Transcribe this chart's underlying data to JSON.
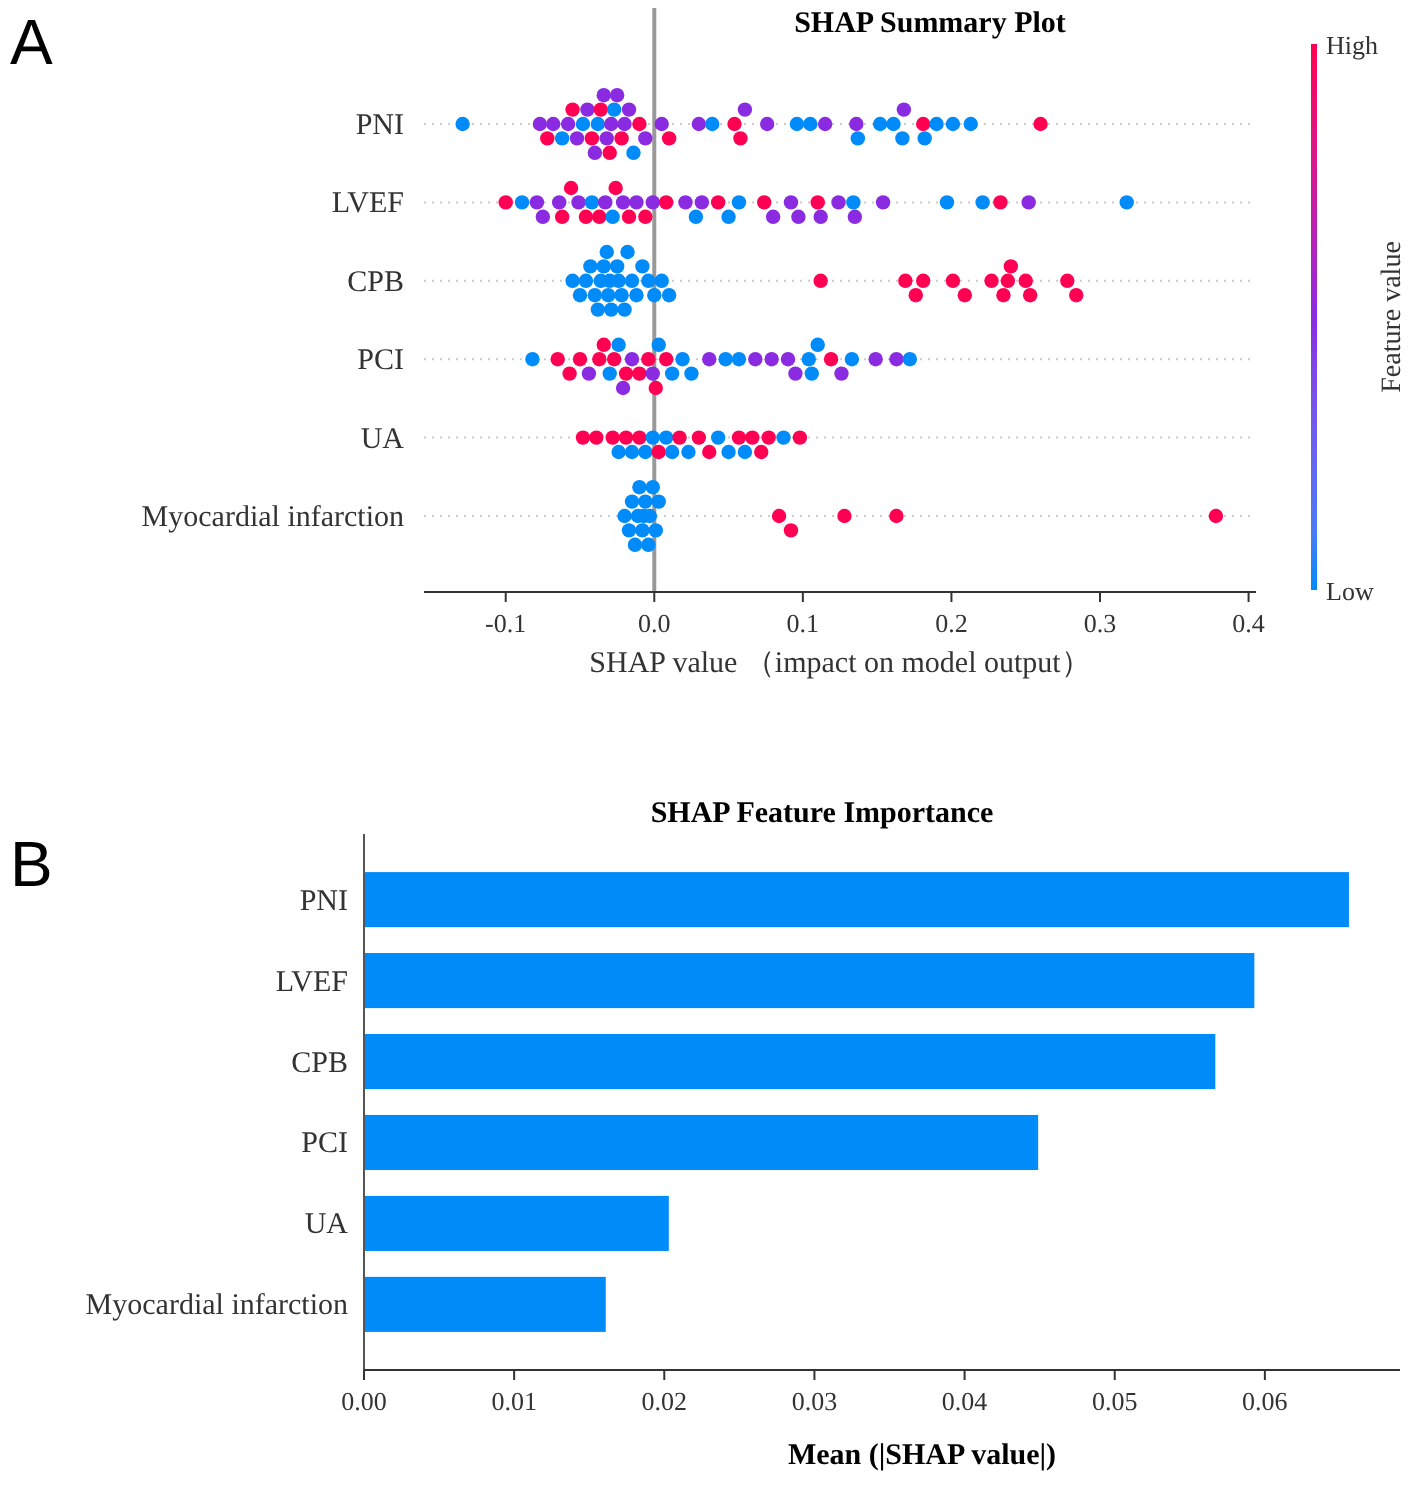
{
  "chart_data": [
    {
      "type": "scatter",
      "title": "SHAP Summary Plot",
      "xlabel": "SHAP value （impact on model output）",
      "clabel": "Feature value",
      "annotations": [
        "A",
        "High",
        "Low"
      ],
      "orientation": "horizontal",
      "grid": "y",
      "categories": [
        "PNI",
        "LVEF",
        "CPB",
        "PCI",
        "UA",
        "Myocardial infarction"
      ],
      "xlim": [
        -0.155,
        0.405
      ],
      "xticks": [
        -0.1,
        {
          "value": 0,
          "label": "0.0"
        },
        0.1,
        0.2,
        0.3,
        0.4
      ],
      "ref_lines": [
        {
          "axis": "x",
          "value": 0,
          "color": "#999999"
        }
      ],
      "series": [
        {
          "x": [
            "PNI",
            "PNI",
            "PNI",
            "PNI",
            "PNI",
            "PNI",
            "PNI",
            "PNI",
            "PNI",
            "PNI",
            "PNI",
            "PNI",
            "PNI",
            "PNI",
            "PNI",
            "PNI",
            "PNI",
            "PNI",
            "PNI",
            "PNI",
            "PNI",
            "PNI",
            "PNI",
            "PNI",
            "PNI",
            "PNI",
            "PNI",
            "PNI",
            "PNI",
            "PNI",
            "PNI",
            "PNI",
            "PNI",
            "PNI",
            "PNI",
            "PNI",
            "PNI",
            "PNI",
            "PNI",
            "PNI",
            "PNI",
            "PNI",
            "PNI",
            "PNI",
            "PNI",
            "PNI",
            "PNI",
            "PNI",
            "PNI"
          ],
          "values": [
            -0.129,
            -0.077,
            -0.072,
            -0.068,
            -0.062,
            -0.058,
            -0.055,
            -0.052,
            -0.048,
            -0.045,
            -0.042,
            -0.04,
            -0.038,
            -0.036,
            -0.034,
            -0.032,
            -0.03,
            -0.029,
            -0.027,
            -0.025,
            -0.022,
            -0.02,
            -0.017,
            -0.014,
            -0.01,
            -0.006,
            0.005,
            0.01,
            0.03,
            0.039,
            0.054,
            0.058,
            0.061,
            0.076,
            0.096,
            0.105,
            0.115,
            0.136,
            0.137,
            0.152,
            0.161,
            0.167,
            0.168,
            0.181,
            0.182,
            0.19,
            0.201,
            0.213,
            0.26
          ],
          "colors": [
            "#008bfb",
            "#8a2be2",
            "#ff0052",
            "#8a2be2",
            "#008bfb",
            "#8a2be2",
            "#ff0052",
            "#8a2be2",
            "#008bfb",
            "#8a2be2",
            "#ff0052",
            "#8a2be2",
            "#008bfb",
            "#ff0052",
            "#8a2be2",
            "#8a2be2",
            "#ff0052",
            "#8a2be2",
            "#008bfb",
            "#8a2be2",
            "#ff0052",
            "#8a2be2",
            "#8a2be2",
            "#008bfb",
            "#ff0052",
            "#8a2be2",
            "#8a2be2",
            "#ff0052",
            "#8a2be2",
            "#008bfb",
            "#ff0052",
            "#ff0052",
            "#8a2be2",
            "#8a2be2",
            "#008bfb",
            "#008bfb",
            "#8a2be2",
            "#8a2be2",
            "#008bfb",
            "#008bfb",
            "#008bfb",
            "#008bfb",
            "#8a2be2",
            "#ff0052",
            "#008bfb",
            "#008bfb",
            "#008bfb",
            "#008bfb",
            "#ff0052"
          ]
        },
        {
          "x": [
            "LVEF",
            "LVEF",
            "LVEF",
            "LVEF",
            "LVEF",
            "LVEF",
            "LVEF",
            "LVEF",
            "LVEF",
            "LVEF",
            "LVEF",
            "LVEF",
            "LVEF",
            "LVEF",
            "LVEF",
            "LVEF",
            "LVEF",
            "LVEF",
            "LVEF",
            "LVEF",
            "LVEF",
            "LVEF",
            "LVEF",
            "LVEF",
            "LVEF",
            "LVEF",
            "LVEF",
            "LVEF",
            "LVEF",
            "LVEF",
            "LVEF",
            "LVEF",
            "LVEF",
            "LVEF",
            "LVEF",
            "LVEF",
            "LVEF",
            "LVEF",
            "LVEF",
            "LVEF",
            "LVEF"
          ],
          "values": [
            -0.1,
            -0.089,
            -0.079,
            -0.075,
            -0.064,
            -0.062,
            -0.056,
            -0.051,
            -0.046,
            -0.042,
            -0.037,
            -0.033,
            -0.028,
            -0.026,
            -0.021,
            -0.017,
            -0.012,
            -0.006,
            -0.001,
            0.008,
            0.021,
            0.028,
            0.032,
            0.043,
            0.05,
            0.057,
            0.074,
            0.08,
            0.092,
            0.097,
            0.11,
            0.112,
            0.124,
            0.134,
            0.135,
            0.154,
            0.197,
            0.221,
            0.233,
            0.252,
            0.318
          ],
          "colors": [
            "#ff0052",
            "#008bfb",
            "#8a2be2",
            "#8a2be2",
            "#8a2be2",
            "#ff0052",
            "#ff0052",
            "#8a2be2",
            "#ff0052",
            "#008bfb",
            "#ff0052",
            "#8a2be2",
            "#008bfb",
            "#ff0052",
            "#8a2be2",
            "#ff0052",
            "#8a2be2",
            "#ff0052",
            "#8a2be2",
            "#ff0052",
            "#8a2be2",
            "#008bfb",
            "#8a2be2",
            "#ff0052",
            "#008bfb",
            "#008bfb",
            "#ff0052",
            "#8a2be2",
            "#8a2be2",
            "#8a2be2",
            "#ff0052",
            "#8a2be2",
            "#8a2be2",
            "#008bfb",
            "#8a2be2",
            "#8a2be2",
            "#008bfb",
            "#008bfb",
            "#ff0052",
            "#8a2be2",
            "#008bfb"
          ]
        },
        {
          "x": [
            "CPB",
            "CPB",
            "CPB",
            "CPB",
            "CPB",
            "CPB",
            "CPB",
            "CPB",
            "CPB",
            "CPB",
            "CPB",
            "CPB",
            "CPB",
            "CPB",
            "CPB",
            "CPB",
            "CPB",
            "CPB",
            "CPB",
            "CPB",
            "CPB",
            "CPB",
            "CPB",
            "CPB",
            "CPB",
            "CPB",
            "CPB",
            "CPB",
            "CPB",
            "CPB",
            "CPB",
            "CPB",
            "CPB",
            "CPB",
            "CPB",
            "CPB",
            "CPB",
            "CPB"
          ],
          "values": [
            -0.055,
            -0.05,
            -0.046,
            -0.043,
            -0.04,
            -0.038,
            -0.036,
            -0.034,
            -0.032,
            -0.031,
            -0.03,
            -0.029,
            -0.025,
            -0.024,
            -0.022,
            -0.02,
            -0.018,
            -0.015,
            -0.012,
            -0.008,
            -0.004,
            0,
            0.005,
            0.01,
            0.112,
            0.169,
            0.176,
            0.181,
            0.201,
            0.209,
            0.227,
            0.235,
            0.238,
            0.24,
            0.25,
            0.253,
            0.278,
            0.284
          ],
          "colors": [
            "#008bfb",
            "#008bfb",
            "#008bfb",
            "#008bfb",
            "#008bfb",
            "#008bfb",
            "#008bfb",
            "#008bfb",
            "#008bfb",
            "#008bfb",
            "#008bfb",
            "#008bfb",
            "#008bfb",
            "#008bfb",
            "#008bfb",
            "#008bfb",
            "#008bfb",
            "#008bfb",
            "#008bfb",
            "#008bfb",
            "#008bfb",
            "#008bfb",
            "#008bfb",
            "#008bfb",
            "#ff0052",
            "#ff0052",
            "#ff0052",
            "#ff0052",
            "#ff0052",
            "#ff0052",
            "#ff0052",
            "#ff0052",
            "#ff0052",
            "#ff0052",
            "#ff0052",
            "#ff0052",
            "#ff0052",
            "#ff0052"
          ]
        },
        {
          "x": [
            "PCI",
            "PCI",
            "PCI",
            "PCI",
            "PCI",
            "PCI",
            "PCI",
            "PCI",
            "PCI",
            "PCI",
            "PCI",
            "PCI",
            "PCI",
            "PCI",
            "PCI",
            "PCI",
            "PCI",
            "PCI",
            "PCI",
            "PCI",
            "PCI",
            "PCI",
            "PCI",
            "PCI",
            "PCI",
            "PCI",
            "PCI",
            "PCI",
            "PCI",
            "PCI",
            "PCI",
            "PCI",
            "PCI",
            "PCI",
            "PCI",
            "PCI",
            "PCI",
            "PCI"
          ],
          "values": [
            -0.082,
            -0.065,
            -0.057,
            -0.05,
            -0.044,
            -0.037,
            -0.03,
            -0.027,
            -0.024,
            -0.019,
            -0.015,
            -0.01,
            -0.004,
            -0.001,
            0.003,
            0.008,
            0.012,
            0.019,
            0.025,
            0.037,
            0.048,
            0.057,
            0.068,
            0.079,
            0.09,
            0.095,
            0.104,
            0.106,
            0.11,
            0.119,
            0.126,
            0.133,
            0.149,
            0.163,
            0.172,
            -0.034,
            -0.021,
            0.001
          ],
          "colors": [
            "#008bfb",
            "#ff0052",
            "#ff0052",
            "#ff0052",
            "#8a2be2",
            "#ff0052",
            "#008bfb",
            "#ff0052",
            "#008bfb",
            "#ff0052",
            "#8a2be2",
            "#ff0052",
            "#ff0052",
            "#8a2be2",
            "#008bfb",
            "#ff0052",
            "#008bfb",
            "#008bfb",
            "#008bfb",
            "#8a2be2",
            "#008bfb",
            "#008bfb",
            "#8a2be2",
            "#8a2be2",
            "#8a2be2",
            "#8a2be2",
            "#008bfb",
            "#008bfb",
            "#008bfb",
            "#ff0052",
            "#8a2be2",
            "#008bfb",
            "#8a2be2",
            "#8a2be2",
            "#008bfb",
            "#ff0052",
            "#8a2be2",
            "#ff0052"
          ]
        },
        {
          "x": [
            "UA",
            "UA",
            "UA",
            "UA",
            "UA",
            "UA",
            "UA",
            "UA",
            "UA",
            "UA",
            "UA",
            "UA",
            "UA",
            "UA",
            "UA",
            "UA",
            "UA",
            "UA",
            "UA",
            "UA",
            "UA",
            "UA",
            "UA",
            "UA",
            "UA"
          ],
          "values": [
            -0.048,
            -0.039,
            -0.028,
            -0.024,
            -0.019,
            -0.015,
            -0.01,
            -0.006,
            -0.001,
            0.003,
            0.008,
            0.012,
            0.017,
            0.023,
            0.03,
            0.037,
            0.043,
            0.05,
            0.057,
            0.061,
            0.066,
            0.072,
            0.077,
            0.087,
            0.098
          ],
          "colors": [
            "#ff0052",
            "#ff0052",
            "#ff0052",
            "#008bfb",
            "#ff0052",
            "#008bfb",
            "#ff0052",
            "#008bfb",
            "#008bfb",
            "#ff0052",
            "#008bfb",
            "#008bfb",
            "#ff0052",
            "#008bfb",
            "#ff0052",
            "#ff0052",
            "#008bfb",
            "#008bfb",
            "#ff0052",
            "#008bfb",
            "#ff0052",
            "#ff0052",
            "#ff0052",
            "#008bfb",
            "#ff0052"
          ]
        },
        {
          "x": [
            "Myocardial infarction",
            "Myocardial infarction",
            "Myocardial infarction",
            "Myocardial infarction",
            "Myocardial infarction",
            "Myocardial infarction",
            "Myocardial infarction",
            "Myocardial infarction",
            "Myocardial infarction",
            "Myocardial infarction",
            "Myocardial infarction",
            "Myocardial infarction",
            "Myocardial infarction",
            "Myocardial infarction",
            "Myocardial infarction",
            "Myocardial infarction",
            "Myocardial infarction",
            "Myocardial infarction",
            "Myocardial infarction"
          ],
          "values": [
            -0.02,
            -0.017,
            -0.015,
            -0.013,
            -0.011,
            -0.01,
            -0.008,
            -0.007,
            -0.006,
            -0.004,
            -0.003,
            -0.001,
            0.001,
            0.003,
            0.084,
            0.092,
            0.128,
            0.163,
            0.378
          ],
          "colors": [
            "#008bfb",
            "#008bfb",
            "#008bfb",
            "#008bfb",
            "#008bfb",
            "#008bfb",
            "#008bfb",
            "#008bfb",
            "#008bfb",
            "#008bfb",
            "#008bfb",
            "#008bfb",
            "#008bfb",
            "#008bfb",
            "#ff0052",
            "#ff0052",
            "#ff0052",
            "#ff0052",
            "#ff0052"
          ]
        }
      ]
    },
    {
      "type": "bar",
      "title": "SHAP Feature Importance",
      "xlabel": "Mean (|SHAP value|)",
      "annotations": [
        "B"
      ],
      "orientation": "horizontal",
      "categories": [
        "PNI",
        "LVEF",
        "CPB",
        "PCI",
        "UA",
        "Myocardial infarction"
      ],
      "values": [
        0.0656,
        0.0593,
        0.0567,
        0.0449,
        0.0203,
        0.0161
      ],
      "color": "#008bfb",
      "xlim": [
        0,
        0.069
      ],
      "xticks": [
        {
          "value": 0,
          "label": "0.00"
        },
        {
          "value": 0.01,
          "label": "0.01"
        },
        {
          "value": 0.02,
          "label": "0.02"
        },
        {
          "value": 0.03,
          "label": "0.03"
        },
        {
          "value": 0.04,
          "label": "0.04"
        },
        {
          "value": 0.05,
          "label": "0.05"
        },
        {
          "value": 0.06,
          "label": "0.06"
        }
      ]
    }
  ]
}
